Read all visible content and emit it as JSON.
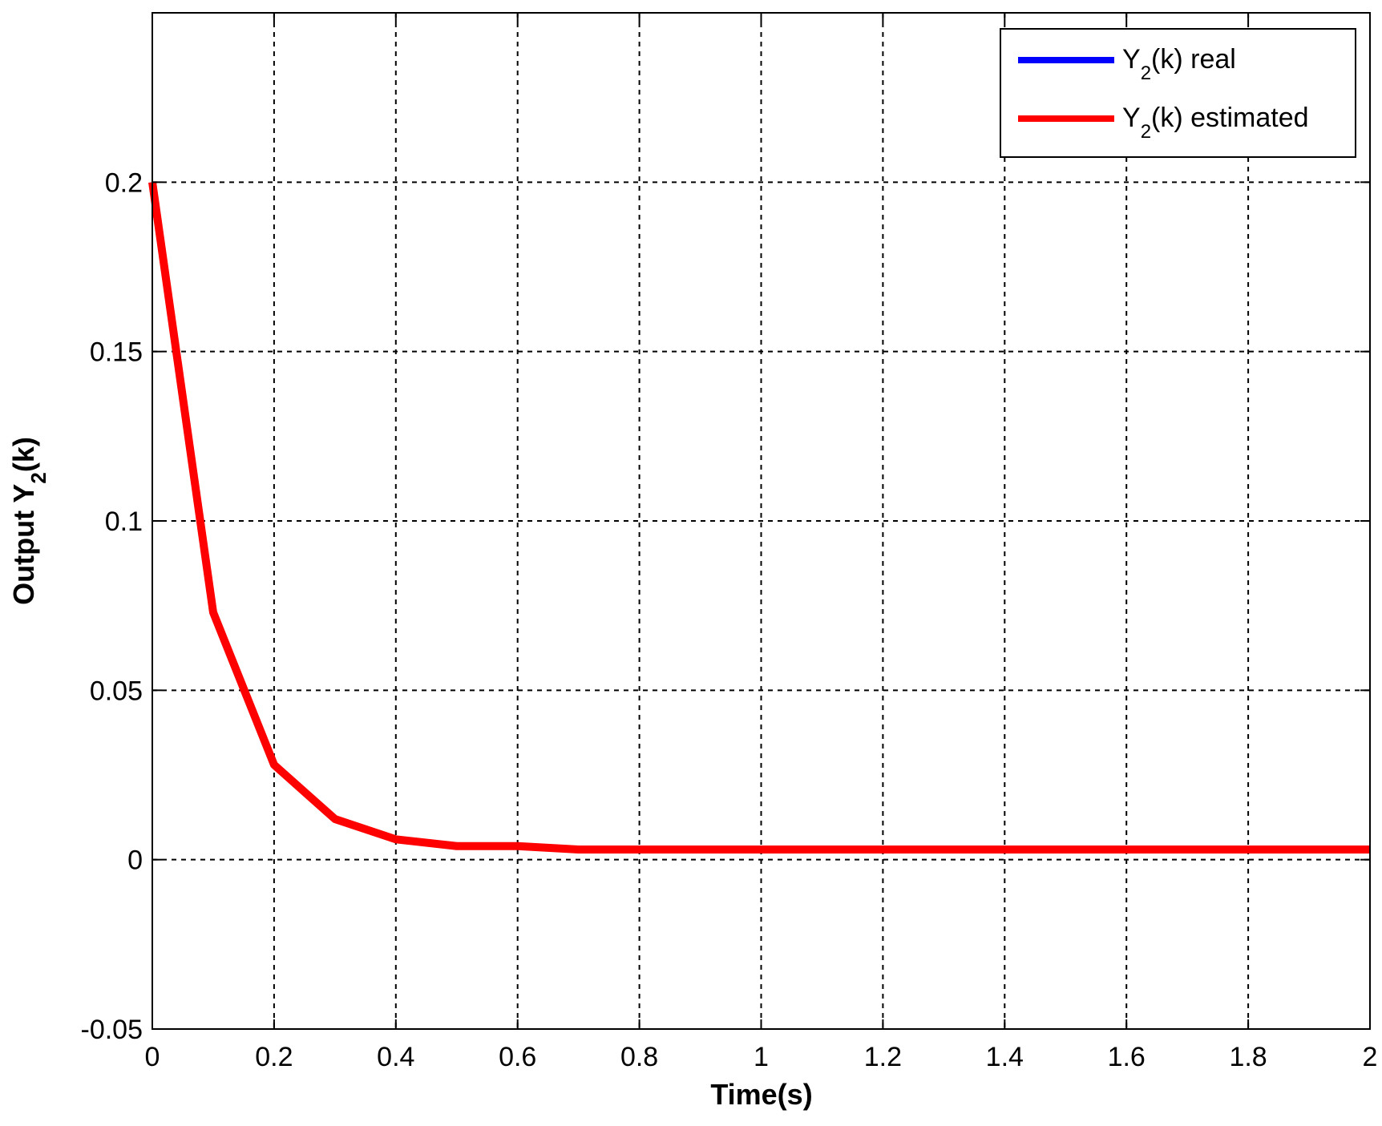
{
  "chart_data": {
    "type": "line",
    "title": "",
    "xlabel": "Time(s)",
    "ylabel": {
      "prefix": "Output Y",
      "subscript": "2",
      "suffix": "(k)"
    },
    "xlim": [
      0,
      2
    ],
    "ylim": [
      -0.05,
      0.25
    ],
    "x_ticks": [
      "0",
      "0.2",
      "0.4",
      "0.6",
      "0.8",
      "1",
      "1.2",
      "1.4",
      "1.6",
      "1.8",
      "2"
    ],
    "x_tick_values": [
      0,
      0.2,
      0.4,
      0.6,
      0.8,
      1.0,
      1.2,
      1.4,
      1.6,
      1.8,
      2.0
    ],
    "y_ticks": [
      "-0.05",
      "0",
      "0.05",
      "0.1",
      "0.15",
      "0.2"
    ],
    "y_tick_values": [
      -0.05,
      0,
      0.05,
      0.1,
      0.15,
      0.2
    ],
    "grid": true,
    "legend_position": "top-right",
    "x": [
      0,
      0.1,
      0.2,
      0.3,
      0.4,
      0.5,
      0.6,
      0.7,
      0.8,
      0.9,
      1.0,
      1.1,
      1.2,
      1.3,
      1.4,
      1.5,
      1.6,
      1.7,
      1.8,
      1.9,
      2.0
    ],
    "series": [
      {
        "name": {
          "prefix": "Y",
          "subscript": "2",
          "suffix": "(k) real"
        },
        "color": "#0000ff",
        "values": [
          0.2,
          0.073,
          0.028,
          0.012,
          0.006,
          0.004,
          0.004,
          0.003,
          0.003,
          0.003,
          0.003,
          0.003,
          0.003,
          0.003,
          0.003,
          0.003,
          0.003,
          0.003,
          0.003,
          0.003,
          0.003
        ]
      },
      {
        "name": {
          "prefix": "Y",
          "subscript": "2",
          "suffix": "(k) estimated"
        },
        "color": "#ff0000",
        "values": [
          0.2,
          0.073,
          0.028,
          0.012,
          0.006,
          0.004,
          0.004,
          0.003,
          0.003,
          0.003,
          0.003,
          0.003,
          0.003,
          0.003,
          0.003,
          0.003,
          0.003,
          0.003,
          0.003,
          0.003,
          0.003
        ]
      }
    ]
  }
}
